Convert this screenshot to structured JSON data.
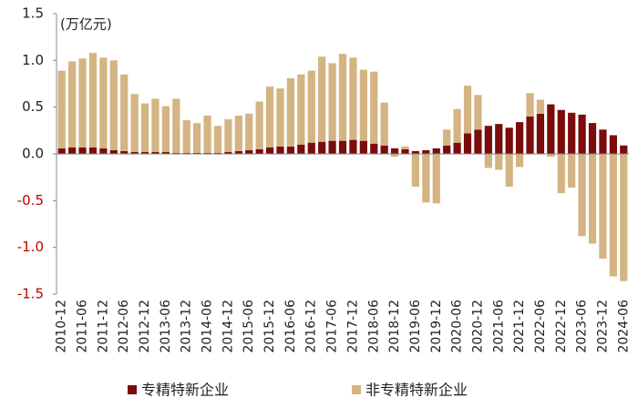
{
  "chart_data": {
    "type": "bar",
    "stacked": true,
    "annotation": "(万亿元)",
    "legend": "bottom",
    "categories": [
      "2010-12",
      null,
      "2011-06",
      null,
      "2011-12",
      null,
      "2012-06",
      null,
      "2012-12",
      null,
      "2013-06",
      null,
      "2013-12",
      null,
      "2014-06",
      null,
      "2014-12",
      null,
      "2015-06",
      null,
      "2015-12",
      null,
      "2016-06",
      null,
      "2016-12",
      null,
      "2017-06",
      null,
      "2017-12",
      null,
      "2018-06",
      null,
      "2018-12",
      null,
      "2019-06",
      null,
      "2019-12",
      null,
      "2020-06",
      null,
      "2020-12",
      null,
      "2021-06",
      null,
      "2021-12",
      null,
      "2022-06",
      null,
      "2022-12",
      null,
      "2023-06",
      null,
      "2023-12",
      null,
      "2024-06"
    ],
    "series": [
      {
        "name": "专精特新企业",
        "color": "#7b0c0c",
        "values": [
          0.06,
          0.07,
          0.07,
          0.07,
          0.06,
          0.04,
          0.03,
          0.02,
          0.02,
          0.02,
          0.02,
          0.01,
          0.01,
          0.01,
          0.01,
          0.01,
          0.02,
          0.03,
          0.04,
          0.05,
          0.07,
          0.08,
          0.08,
          0.1,
          0.12,
          0.13,
          0.14,
          0.14,
          0.15,
          0.14,
          0.11,
          0.09,
          0.06,
          0.05,
          0.03,
          0.04,
          0.06,
          0.09,
          0.12,
          0.22,
          0.26,
          0.3,
          0.32,
          0.28,
          0.34,
          0.4,
          0.43,
          0.53,
          0.47,
          0.44,
          0.42,
          0.33,
          0.26,
          0.2,
          0.09
        ]
      },
      {
        "name": "非专精特新企业",
        "color": "#d4b483",
        "values": [
          0.83,
          0.92,
          0.95,
          1.01,
          0.97,
          0.96,
          0.82,
          0.62,
          0.52,
          0.57,
          0.49,
          0.58,
          0.35,
          0.32,
          0.4,
          0.29,
          0.35,
          0.38,
          0.39,
          0.51,
          0.65,
          0.62,
          0.73,
          0.75,
          0.77,
          0.91,
          0.83,
          0.93,
          0.88,
          0.76,
          0.77,
          0.46,
          -0.03,
          0.03,
          -0.35,
          -0.52,
          -0.53,
          0.17,
          0.36,
          0.51,
          0.37,
          -0.15,
          -0.17,
          -0.35,
          -0.14,
          0.25,
          0.15,
          -0.03,
          -0.42,
          -0.36,
          -0.88,
          -0.96,
          -1.12,
          -1.31,
          -1.36
        ]
      }
    ],
    "ylim": [
      -1.5,
      1.5
    ],
    "yticks": [
      1.5,
      {
        "value": 1.0,
        "label": "1.0"
      },
      0.5,
      {
        "value": 0.0,
        "label": "0.0"
      },
      -0.5,
      {
        "value": -1.0,
        "label": "-1.0"
      },
      -1.5
    ]
  }
}
